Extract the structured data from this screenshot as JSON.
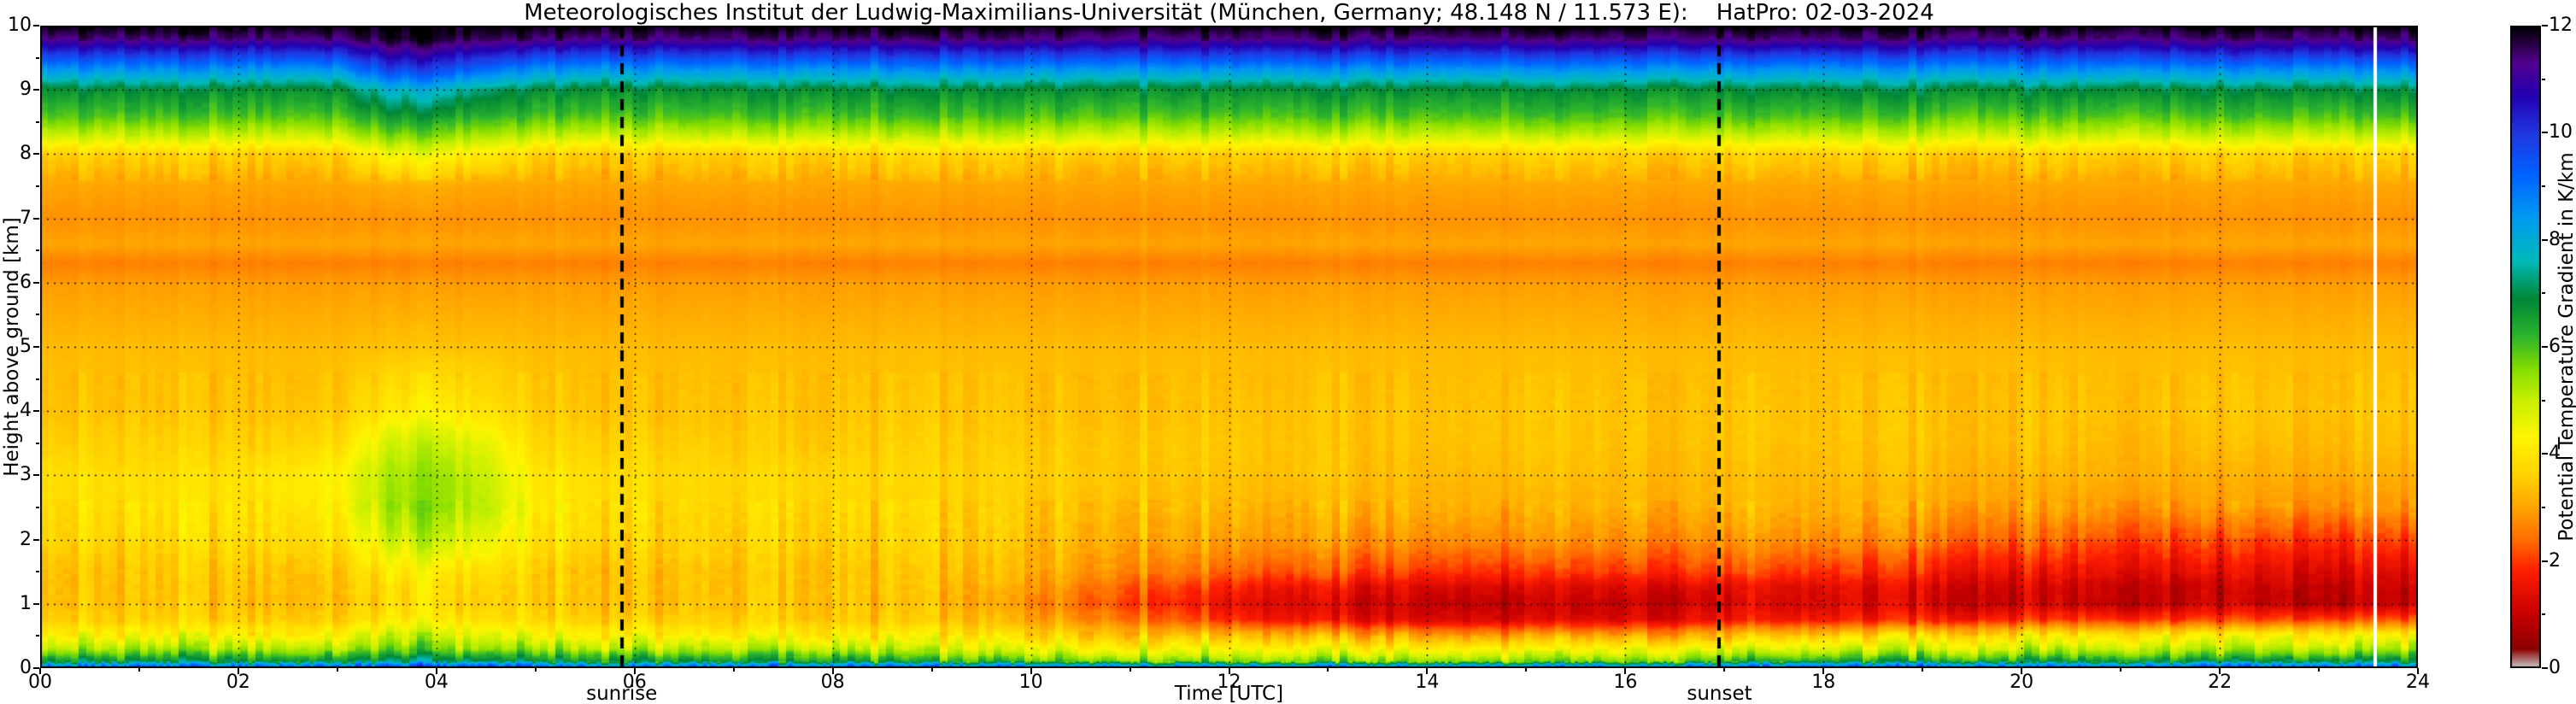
{
  "title": "Meteorologisches Institut der Ludwig-Maximilians-Universität (München, Germany; 48.148 N / 11.573 E):    HatPro: 02-03-2024",
  "axes": {
    "xlabel": "Time [UTC]",
    "ylabel": "Height above ground [km]",
    "x_ticks": [
      "00",
      "02",
      "04",
      "06",
      "08",
      "10",
      "12",
      "14",
      "16",
      "18",
      "20",
      "22",
      "24"
    ],
    "y_ticks": [
      "0",
      "1",
      "2",
      "3",
      "4",
      "5",
      "6",
      "7",
      "8",
      "9",
      "10"
    ],
    "x_range": [
      0,
      24
    ],
    "y_range": [
      0,
      10
    ],
    "grid": "dotted"
  },
  "colorbar": {
    "label": "Potential Temperature Gradient in K/km",
    "ticks": [
      "0",
      "2",
      "4",
      "6",
      "8",
      "10",
      "12"
    ],
    "min": 0,
    "max": 12
  },
  "annotations": {
    "sunrise": {
      "label": "sunrise",
      "hour": 5.87
    },
    "sunset": {
      "label": "sunset",
      "hour": 16.95
    },
    "data_gap_hour": 23.57
  },
  "chart_data": {
    "type": "heatmap",
    "x_hours": [
      0,
      1,
      2,
      3,
      3.5,
      4,
      4.5,
      5,
      6,
      7,
      8,
      9,
      10,
      11,
      12,
      13,
      14,
      15,
      16,
      17,
      18,
      19,
      20,
      21,
      22,
      23,
      23.5,
      24
    ],
    "heights_km": [
      0,
      0.1,
      0.2,
      0.3,
      0.5,
      0.75,
      1,
      1.25,
      1.5,
      2,
      2.5,
      3,
      3.5,
      4,
      5,
      6,
      6.3,
      6.6,
      7,
      7.5,
      8,
      8.3,
      8.6,
      9,
      9.3,
      9.6,
      9.8,
      10
    ],
    "value_range": [
      0,
      12
    ],
    "values": [
      [
        9.6,
        6.8,
        6.0,
        5.2,
        4.3,
        3.6,
        3.4,
        3.4,
        3.4,
        3.7,
        3.8,
        3.9,
        3.6,
        3.4,
        3.3,
        2.9,
        2.6,
        3.0,
        2.8,
        3.0,
        3.6,
        5.0,
        6.0,
        6.8,
        8.4,
        10.2,
        11.4,
        12.0
      ],
      [
        9.6,
        6.8,
        6.0,
        5.2,
        4.3,
        3.6,
        3.4,
        3.4,
        3.4,
        3.7,
        3.9,
        3.8,
        3.6,
        3.4,
        3.3,
        2.9,
        2.6,
        3.0,
        2.8,
        3.0,
        3.6,
        5.0,
        6.0,
        6.8,
        8.4,
        10.2,
        11.4,
        12.0
      ],
      [
        9.6,
        6.8,
        6.0,
        5.2,
        4.3,
        3.6,
        3.4,
        3.4,
        3.5,
        3.8,
        3.9,
        3.9,
        3.6,
        3.4,
        3.3,
        2.9,
        2.6,
        3.0,
        2.8,
        3.0,
        3.6,
        5.0,
        6.0,
        6.8,
        8.4,
        10.2,
        11.4,
        12.0
      ],
      [
        9.6,
        6.8,
        6.0,
        5.2,
        4.3,
        3.6,
        3.4,
        3.4,
        3.5,
        3.9,
        4.2,
        4.3,
        3.8,
        3.5,
        3.3,
        2.9,
        2.6,
        3.0,
        2.8,
        3.0,
        3.6,
        5.0,
        6.0,
        6.8,
        8.4,
        10.2,
        11.4,
        12.0
      ],
      [
        10.0,
        7.2,
        6.4,
        5.6,
        4.9,
        4.0,
        3.7,
        3.8,
        4.0,
        4.8,
        5.3,
        5.2,
        4.8,
        4.0,
        3.4,
        2.9,
        2.6,
        3.0,
        2.8,
        3.1,
        4.4,
        5.6,
        6.6,
        7.8,
        9.6,
        11.0,
        11.8,
        12.0
      ],
      [
        10.0,
        7.2,
        6.4,
        5.6,
        4.9,
        4.1,
        3.8,
        3.9,
        4.1,
        5.0,
        5.5,
        5.4,
        5.0,
        4.2,
        3.4,
        2.9,
        2.6,
        3.0,
        2.8,
        3.1,
        4.4,
        5.6,
        6.6,
        7.8,
        9.6,
        11.0,
        11.8,
        12.0
      ],
      [
        10.0,
        7.0,
        6.2,
        5.4,
        4.7,
        3.9,
        3.6,
        3.7,
        3.9,
        4.6,
        5.1,
        5.0,
        4.6,
        3.9,
        3.4,
        2.9,
        2.6,
        3.0,
        2.8,
        3.0,
        4.1,
        5.3,
        6.3,
        7.2,
        9.0,
        10.6,
        11.6,
        12.0
      ],
      [
        9.6,
        6.8,
        6.0,
        5.2,
        4.4,
        3.7,
        3.5,
        3.5,
        3.5,
        3.9,
        4.1,
        4.0,
        3.7,
        3.5,
        3.3,
        2.9,
        2.6,
        3.0,
        2.8,
        3.0,
        3.6,
        5.0,
        6.0,
        6.8,
        8.4,
        10.2,
        11.4,
        12.0
      ],
      [
        9.6,
        6.8,
        6.0,
        5.2,
        4.3,
        3.6,
        3.4,
        3.4,
        3.4,
        3.7,
        3.8,
        3.8,
        3.6,
        3.4,
        3.3,
        2.9,
        2.6,
        3.0,
        2.8,
        3.0,
        3.6,
        5.0,
        6.0,
        6.8,
        8.4,
        10.2,
        11.4,
        12.0
      ],
      [
        9.6,
        6.7,
        5.9,
        5.1,
        4.2,
        3.6,
        3.4,
        3.4,
        3.4,
        3.6,
        3.7,
        3.7,
        3.5,
        3.4,
        3.3,
        2.9,
        2.6,
        3.0,
        2.8,
        3.0,
        3.6,
        5.0,
        6.0,
        6.8,
        8.4,
        10.2,
        11.4,
        12.0
      ],
      [
        9.6,
        6.6,
        5.8,
        5.0,
        4.1,
        3.5,
        3.4,
        3.4,
        3.4,
        3.6,
        3.7,
        3.7,
        3.5,
        3.4,
        3.3,
        2.9,
        2.6,
        3.0,
        2.8,
        3.0,
        3.6,
        5.0,
        6.0,
        6.8,
        8.4,
        10.2,
        11.4,
        12.0
      ],
      [
        9.4,
        6.2,
        5.4,
        4.7,
        4.0,
        3.4,
        3.2,
        3.3,
        3.3,
        3.5,
        3.6,
        3.6,
        3.5,
        3.4,
        3.3,
        2.9,
        2.6,
        3.0,
        2.8,
        3.0,
        3.6,
        5.0,
        6.0,
        6.8,
        8.4,
        10.2,
        11.4,
        12.0
      ],
      [
        9.4,
        6.0,
        5.2,
        4.6,
        3.8,
        3.1,
        2.8,
        3.0,
        3.2,
        3.4,
        3.5,
        3.6,
        3.5,
        3.4,
        3.3,
        2.9,
        2.6,
        3.0,
        2.8,
        3.0,
        3.6,
        5.0,
        6.0,
        6.8,
        8.4,
        10.2,
        11.4,
        12.0
      ],
      [
        9.4,
        5.8,
        5.0,
        4.4,
        3.5,
        2.6,
        2.2,
        2.4,
        2.8,
        3.2,
        3.4,
        3.5,
        3.5,
        3.4,
        3.3,
        2.9,
        2.6,
        3.0,
        2.8,
        3.0,
        3.6,
        5.0,
        6.0,
        6.8,
        8.4,
        10.2,
        11.4,
        12.0
      ],
      [
        9.4,
        5.7,
        4.9,
        4.4,
        3.4,
        1.9,
        1.5,
        1.8,
        2.4,
        3.0,
        3.3,
        3.4,
        3.5,
        3.4,
        3.3,
        2.9,
        2.6,
        3.0,
        2.8,
        3.0,
        3.6,
        5.0,
        6.0,
        6.8,
        8.4,
        10.2,
        11.4,
        12.0
      ],
      [
        9.4,
        5.6,
        4.9,
        4.3,
        3.2,
        1.5,
        1.2,
        1.5,
        2.2,
        2.9,
        3.2,
        3.4,
        3.4,
        3.4,
        3.3,
        2.9,
        2.6,
        3.0,
        2.8,
        3.0,
        3.6,
        5.0,
        6.0,
        6.8,
        8.4,
        10.2,
        11.4,
        12.0
      ],
      [
        9.4,
        5.6,
        4.8,
        4.2,
        3.0,
        1.3,
        1.0,
        1.3,
        2.0,
        2.8,
        3.2,
        3.3,
        3.4,
        3.4,
        3.3,
        2.9,
        2.6,
        3.0,
        2.8,
        3.0,
        3.6,
        5.0,
        6.0,
        6.8,
        8.4,
        10.2,
        11.4,
        12.0
      ],
      [
        9.4,
        5.6,
        4.8,
        4.2,
        2.9,
        1.2,
        0.9,
        1.2,
        1.9,
        2.7,
        3.1,
        3.3,
        3.4,
        3.4,
        3.3,
        2.9,
        2.6,
        3.0,
        2.8,
        3.0,
        3.6,
        5.0,
        6.0,
        6.8,
        8.4,
        10.2,
        11.4,
        12.0
      ],
      [
        9.4,
        5.7,
        4.9,
        4.3,
        3.0,
        1.3,
        1.0,
        1.3,
        2.0,
        2.8,
        3.2,
        3.3,
        3.4,
        3.4,
        3.3,
        2.9,
        2.6,
        3.0,
        2.8,
        3.0,
        3.6,
        5.0,
        6.0,
        6.8,
        8.4,
        10.2,
        11.4,
        12.0
      ],
      [
        9.6,
        6.2,
        5.3,
        4.6,
        3.3,
        1.6,
        1.2,
        1.4,
        2.1,
        2.8,
        3.2,
        3.3,
        3.4,
        3.4,
        3.3,
        2.9,
        2.6,
        3.0,
        2.8,
        3.0,
        3.6,
        5.0,
        6.0,
        6.8,
        8.4,
        10.2,
        11.4,
        12.0
      ],
      [
        9.6,
        6.5,
        5.5,
        4.8,
        3.6,
        1.7,
        1.3,
        1.4,
        2.0,
        2.8,
        3.2,
        3.3,
        3.4,
        3.4,
        3.3,
        2.9,
        2.6,
        3.0,
        2.8,
        3.0,
        3.6,
        5.0,
        6.0,
        6.9,
        8.4,
        10.2,
        11.4,
        12.0
      ],
      [
        9.6,
        6.6,
        5.6,
        4.9,
        3.8,
        1.8,
        1.2,
        1.3,
        1.8,
        2.6,
        3.1,
        3.3,
        3.4,
        3.4,
        3.3,
        2.9,
        2.6,
        3.0,
        2.8,
        3.0,
        3.6,
        5.0,
        6.0,
        6.9,
        8.4,
        10.2,
        11.4,
        12.0
      ],
      [
        9.6,
        6.7,
        5.7,
        5.0,
        4.0,
        1.9,
        1.1,
        1.2,
        1.6,
        2.4,
        3.0,
        3.2,
        3.4,
        3.4,
        3.3,
        2.9,
        2.6,
        3.0,
        2.8,
        3.0,
        3.6,
        5.0,
        6.0,
        6.9,
        8.5,
        10.2,
        11.4,
        12.0
      ],
      [
        9.6,
        6.8,
        5.8,
        5.1,
        4.1,
        2.0,
        1.0,
        1.1,
        1.5,
        2.2,
        2.9,
        3.2,
        3.3,
        3.4,
        3.3,
        2.9,
        2.6,
        3.0,
        2.8,
        3.0,
        3.6,
        5.0,
        6.0,
        6.9,
        8.5,
        10.3,
        11.4,
        12.0
      ],
      [
        9.6,
        6.8,
        5.8,
        5.1,
        4.2,
        2.0,
        1.0,
        1.0,
        1.4,
        2.1,
        2.9,
        3.1,
        3.3,
        3.4,
        3.3,
        2.9,
        2.6,
        3.0,
        2.8,
        3.0,
        3.6,
        5.0,
        6.0,
        6.9,
        8.5,
        10.3,
        11.4,
        12.0
      ],
      [
        9.6,
        6.9,
        5.9,
        5.1,
        4.2,
        2.1,
        0.9,
        1.0,
        1.3,
        2.0,
        2.8,
        3.1,
        3.3,
        3.4,
        3.3,
        2.9,
        2.6,
        3.0,
        2.8,
        3.0,
        3.6,
        5.0,
        6.0,
        6.9,
        8.5,
        10.3,
        11.4,
        12.0
      ],
      [
        9.6,
        6.9,
        5.9,
        5.1,
        4.2,
        2.1,
        0.9,
        1.0,
        1.3,
        2.0,
        2.8,
        3.1,
        3.3,
        3.4,
        3.3,
        2.9,
        2.6,
        3.0,
        2.8,
        3.0,
        3.6,
        5.0,
        6.0,
        6.9,
        8.5,
        10.3,
        11.4,
        12.0
      ],
      [
        9.6,
        6.9,
        5.9,
        5.1,
        4.2,
        2.1,
        0.9,
        1.0,
        1.3,
        2.0,
        2.8,
        3.1,
        3.3,
        3.4,
        3.3,
        2.9,
        2.6,
        3.0,
        2.8,
        3.0,
        3.6,
        5.0,
        6.0,
        6.9,
        8.5,
        10.3,
        11.4,
        12.0
      ]
    ],
    "colormap_stops": [
      [
        0.0,
        "#c8c8c8"
      ],
      [
        0.35,
        "#8c0000"
      ],
      [
        1.0,
        "#c80000"
      ],
      [
        1.8,
        "#ff1e00"
      ],
      [
        2.4,
        "#ff6e00"
      ],
      [
        3.0,
        "#ffa500"
      ],
      [
        3.6,
        "#ffd200"
      ],
      [
        4.3,
        "#fff500"
      ],
      [
        5.0,
        "#c8f000"
      ],
      [
        5.6,
        "#82dc00"
      ],
      [
        6.2,
        "#2db42d"
      ],
      [
        6.9,
        "#008737"
      ],
      [
        7.6,
        "#00b9b9"
      ],
      [
        8.4,
        "#009cf0"
      ],
      [
        9.2,
        "#0064ff"
      ],
      [
        10.0,
        "#2136e0"
      ],
      [
        10.7,
        "#2300b0"
      ],
      [
        11.3,
        "#52008e"
      ],
      [
        12.0,
        "#000000"
      ]
    ]
  }
}
